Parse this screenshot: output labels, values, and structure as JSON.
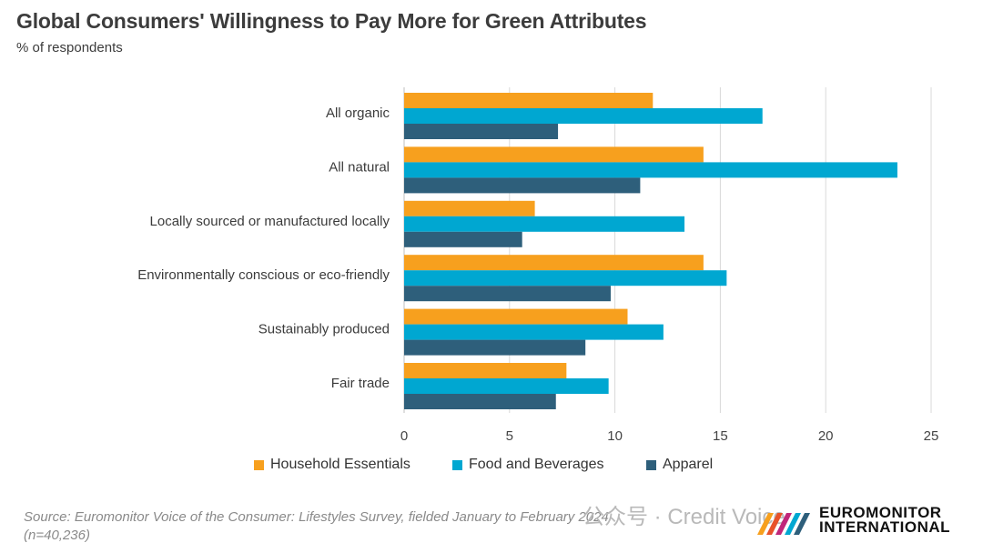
{
  "header": {
    "title": "Global Consumers' Willingness to Pay More for Green Attributes",
    "subtitle": "% of respondents"
  },
  "chart_data": {
    "type": "bar",
    "orientation": "horizontal",
    "title": "Global Consumers' Willingness to Pay More for Green Attributes",
    "subtitle": "% of respondents",
    "xlabel": "",
    "ylabel": "",
    "xlim": [
      0,
      25
    ],
    "xticks": [
      0,
      5,
      10,
      15,
      20,
      25
    ],
    "grid": true,
    "legend_position": "bottom",
    "categories": [
      "All organic",
      "All natural",
      "Locally sourced or manufactured locally",
      "Environmentally conscious or eco-friendly",
      "Sustainably produced",
      "Fair trade"
    ],
    "series": [
      {
        "name": "Household Essentials",
        "color": "#f7a01e",
        "values": [
          11.8,
          14.2,
          6.2,
          14.2,
          10.6,
          7.7
        ]
      },
      {
        "name": "Food and Beverages",
        "color": "#00a7d1",
        "values": [
          17.0,
          23.4,
          13.3,
          15.3,
          12.3,
          9.7
        ]
      },
      {
        "name": "Apparel",
        "color": "#2e5f7b",
        "values": [
          7.3,
          11.2,
          5.6,
          9.8,
          8.6,
          7.2
        ]
      }
    ]
  },
  "footer": {
    "source_line1": "Source: Euromonitor Voice of the Consumer: Lifestyles Survey, fielded January to February 2024",
    "source_line2": "(n=40,236)",
    "watermark": "公众号 · Credit Voice",
    "logo_line1": "EUROMONITOR",
    "logo_line2": "INTERNATIONAL"
  }
}
